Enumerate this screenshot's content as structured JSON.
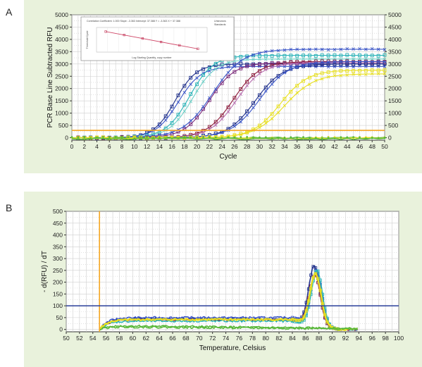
{
  "panels": {
    "a_label": "A",
    "b_label": "B"
  },
  "colors": {
    "panel_bg": "#e9f2dc",
    "threshold_orange": "#f5a623",
    "threshold_blue": "#2a3f9a",
    "series": [
      "#1f2f8a",
      "#3a55c8",
      "#2bb3b8",
      "#6fd0c8",
      "#7a2a7a",
      "#8c1c3c",
      "#b86fb0",
      "#e8e021",
      "#59b83a"
    ]
  },
  "chart_data": [
    {
      "type": "line",
      "panel": "A",
      "title": "",
      "xlabel": "Cycle",
      "ylabel": "PCR Base Line Subtracted RFU",
      "xlim": [
        0,
        50
      ],
      "ylim": [
        -100,
        5000
      ],
      "x_ticks": [
        0,
        2,
        4,
        6,
        8,
        10,
        12,
        14,
        16,
        18,
        20,
        22,
        24,
        26,
        28,
        30,
        32,
        34,
        36,
        38,
        40,
        42,
        44,
        46,
        48,
        50
      ],
      "y_ticks": [
        0,
        500,
        1000,
        1500,
        2000,
        2500,
        3000,
        3500,
        4000,
        4500,
        5000
      ],
      "grid": true,
      "threshold": 300,
      "curve_model": "sigmoid",
      "series": [
        {
          "midpoint": 16.5,
          "plateau": 3000,
          "slope": 1.7,
          "color": "#1f2f8a"
        },
        {
          "midpoint": 17.0,
          "plateau": 2900,
          "slope": 1.8,
          "color": "#3a55c8"
        },
        {
          "midpoint": 18.8,
          "plateau": 3350,
          "slope": 1.9,
          "color": "#2bb3b8"
        },
        {
          "midpoint": 19.3,
          "plateau": 3200,
          "slope": 1.9,
          "color": "#6fd0c8"
        },
        {
          "midpoint": 22.0,
          "plateau": 3050,
          "slope": 2.0,
          "color": "#7a2a7a"
        },
        {
          "midpoint": 22.5,
          "plateau": 3600,
          "slope": 2.4,
          "color": "#3a55c8"
        },
        {
          "midpoint": 25.8,
          "plateau": 3100,
          "slope": 2.1,
          "color": "#8c1c3c"
        },
        {
          "midpoint": 26.3,
          "plateau": 3050,
          "slope": 2.1,
          "color": "#b86fb0"
        },
        {
          "midpoint": 29.3,
          "plateau": 3000,
          "slope": 2.2,
          "color": "#1f2f8a"
        },
        {
          "midpoint": 30.0,
          "plateau": 3100,
          "slope": 2.3,
          "color": "#3a55c8"
        },
        {
          "midpoint": 33.3,
          "plateau": 2750,
          "slope": 2.2,
          "color": "#e8e021"
        },
        {
          "midpoint": 34.0,
          "plateau": 2600,
          "slope": 2.4,
          "color": "#e8e021"
        }
      ],
      "flat_series_colors": [
        "#59b83a",
        "#e8e021",
        "#59b83a"
      ],
      "inset": {
        "type": "line",
        "title": "Correlation Coefficient: 1.000   Slope: -3.363   Intercept: 37.388   Y = -3.363 X + 37.388",
        "xlabel": "Log Starting Quantity, copy number",
        "ylabel": "Threshold Cycle",
        "legend": [
          "Unknowns",
          "Standards"
        ],
        "x": [
          1,
          2,
          3,
          4,
          5,
          6
        ],
        "y": [
          34.0,
          30.7,
          27.3,
          23.9,
          20.6,
          17.2
        ]
      }
    },
    {
      "type": "line",
      "panel": "B",
      "title": "",
      "xlabel": "Temperature, Celsius",
      "ylabel": "- d(RFU) / dT",
      "xlim": [
        50,
        100
      ],
      "ylim": [
        -10,
        500
      ],
      "x_ticks": [
        50,
        52,
        54,
        56,
        58,
        60,
        62,
        64,
        66,
        68,
        70,
        72,
        74,
        76,
        78,
        80,
        82,
        84,
        86,
        88,
        90,
        92,
        94,
        96,
        98,
        100
      ],
      "y_ticks": [
        0,
        50,
        100,
        150,
        200,
        250,
        300,
        350,
        400,
        450,
        500
      ],
      "grid": true,
      "threshold": 100,
      "start_line_x": 55,
      "peak": {
        "x": 87.5,
        "y": 250
      },
      "curve_model": "melt",
      "series": [
        {
          "plateau": 45,
          "peak_height": 245,
          "peak_x": 87.3,
          "color": "#1f2f8a"
        },
        {
          "plateau": 50,
          "peak_height": 225,
          "peak_x": 87.6,
          "color": "#3a55c8"
        },
        {
          "plateau": 40,
          "peak_height": 210,
          "peak_x": 87.4,
          "color": "#8c1c3c"
        },
        {
          "plateau": 35,
          "peak_height": 235,
          "peak_x": 87.7,
          "color": "#2bb3b8"
        },
        {
          "plateau": 42,
          "peak_height": 215,
          "peak_x": 87.5,
          "color": "#e8e021"
        },
        {
          "plateau": 15,
          "peak_height": 0,
          "peak_x": 87.5,
          "color": "#59b83a"
        },
        {
          "plateau": 10,
          "peak_height": 0,
          "peak_x": 87.5,
          "color": "#59b83a"
        }
      ]
    }
  ]
}
